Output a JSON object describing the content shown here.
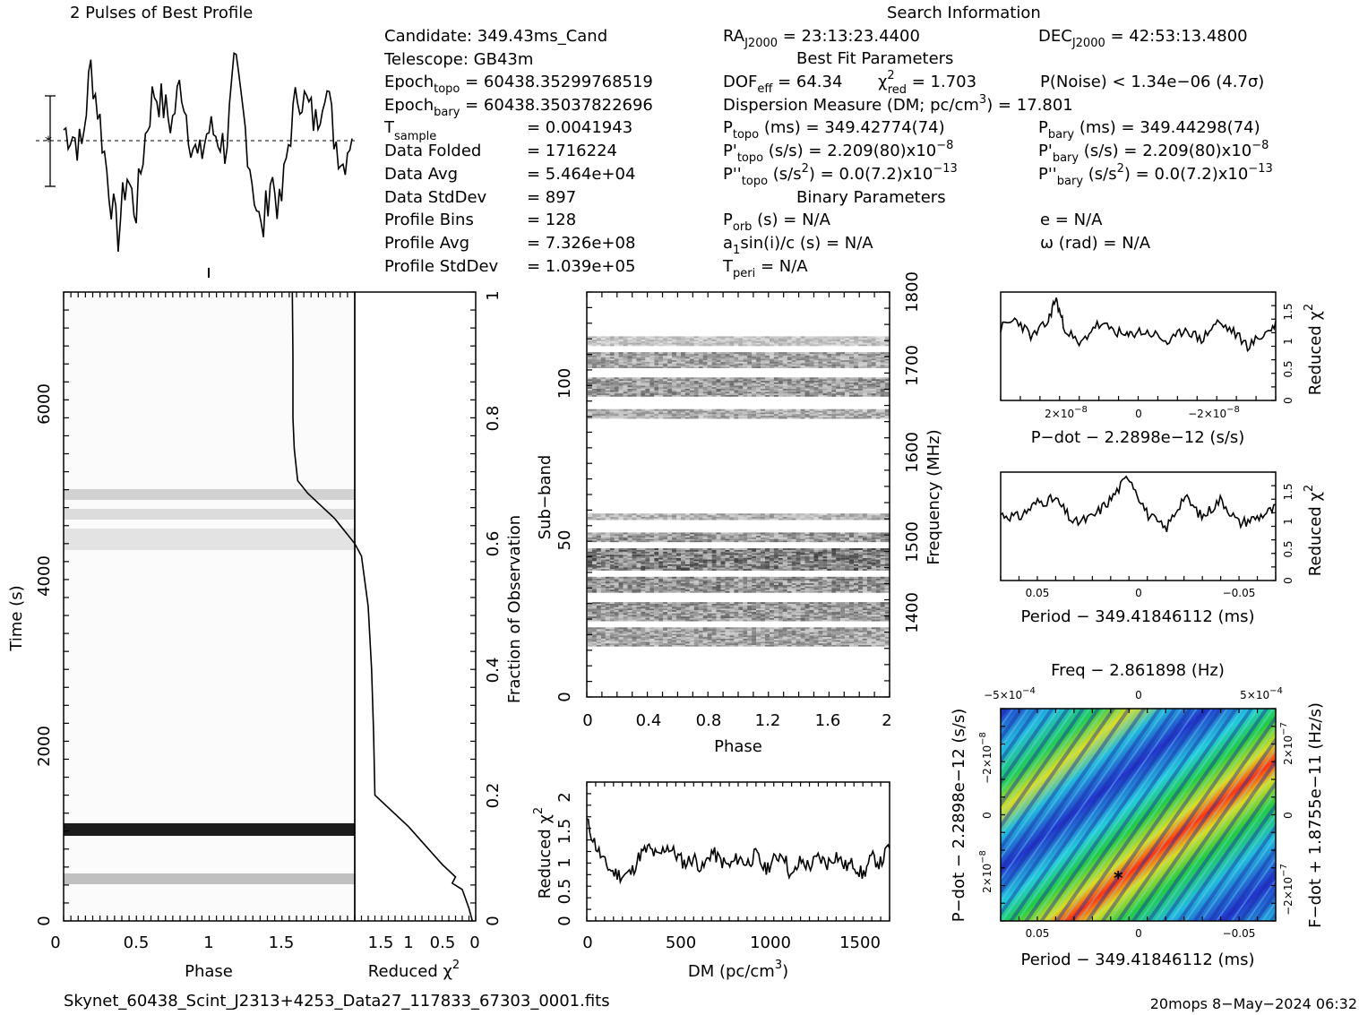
{
  "headers": {
    "profile_title": "2 Pulses of Best Profile",
    "search_title": "Search Information",
    "best_fit_title": "Best Fit Parameters",
    "binary_title": "Binary Parameters"
  },
  "candidate_info": {
    "candidate": "Candidate:  349.43ms_Cand",
    "telescope": "Telescope:  GB43m",
    "epoch_topo_label": "Epoch",
    "epoch_topo_sub": "topo",
    "epoch_topo_value": " = 60438.35299768519",
    "epoch_bary_label": "Epoch",
    "epoch_bary_sub": "bary",
    "epoch_bary_value": " = 60438.35037822696",
    "t_sample_label": "T",
    "t_sample_sub": "sample",
    "t_sample_value": "=  0.0041943",
    "data_folded_label": "Data Folded",
    "data_folded_value": "=  1716224",
    "data_avg_label": "Data Avg",
    "data_avg_value": "=  5.464e+04",
    "data_stddev_label": "Data StdDev",
    "data_stddev_value": "=  897",
    "profile_bins_label": "Profile Bins",
    "profile_bins_value": "=  128",
    "profile_avg_label": "Profile Avg",
    "profile_avg_value": "=  7.326e+08",
    "profile_stddev_label": "Profile StdDev",
    "profile_stddev_value": "=  1.039e+05"
  },
  "search_info": {
    "ra_label": "RA",
    "ra_sub": "J2000",
    "ra_value": " = 23:13:23.4400",
    "dec_label": "DEC",
    "dec_sub": "J2000",
    "dec_value": " = 42:53:13.4800",
    "dof_label": "DOF",
    "dof_sub": "eff",
    "dof_value": " = 64.34",
    "chi_label": "χ",
    "chi_sup": "2",
    "chi_sub": "red",
    "chi_value": " = 1.703",
    "pnoise": "P(Noise) < 1.34e−06   (4.7σ)",
    "dm_line_a": "Dispersion Measure (DM; pc/cm",
    "dm_line_sup": "3",
    "dm_line_b": ") = 17.801",
    "ptopo_label": "P",
    "ptopo_sub": "topo",
    "ptopo_value": " (ms) =  349.42774(74)",
    "pbary_label": "P",
    "pbary_sub": "bary",
    "pbary_value": " (ms) =  349.44298(74)",
    "pdtopo_label": "P'",
    "pdtopo_sub": "topo",
    "pdtopo_value": " (s/s) =  2.209(80)x10",
    "pdtopo_exp": "−8",
    "pdbary_label": "P'",
    "pdbary_sub": "bary",
    "pdbary_value": " (s/s) =  2.209(80)x10",
    "pdbary_exp": "−8",
    "pddtopo_label": "P''",
    "pddtopo_sub": "topo",
    "pddtopo_value": " (s/s",
    "pddtopo_sup": "2",
    "pddtopo_value2": ") = 0.0(7.2)x10",
    "pddtopo_exp": "−13",
    "pddbary_label": "P''",
    "pddbary_sub": "bary",
    "pddbary_value": " (s/s",
    "pddbary_sup": "2",
    "pddbary_value2": ") = 0.0(7.2)x10",
    "pddbary_exp": "−13",
    "porb_label": "P",
    "porb_sub": "orb",
    "porb_value": " (s) = N/A",
    "ecc": "e = N/A",
    "a1_label": "a",
    "a1_sub": "1",
    "a1_value": "sin(i)/c (s) = N/A",
    "omega": "ω (rad) = N/A",
    "tperi_label": "T",
    "tperi_sub": "peri",
    "tperi_value": " = N/A"
  },
  "footer": {
    "filename": "Skynet_60438_Scint_J2313+4253_Data27_117833_67303_0001.fits",
    "stamp": "20mops   8−May−2024 06:32"
  },
  "axes": {
    "time_phase": {
      "xlabel": "Phase",
      "ylabel": "Time (s)",
      "xticks": [
        "0",
        "0.5",
        "1",
        "1.5"
      ],
      "yticks": [
        "0",
        "2000",
        "4000",
        "6000"
      ]
    },
    "redchi_time": {
      "xlabel": "Reduced χ",
      "xlabel_sup": "2",
      "xticks": [
        "1.5",
        "1",
        "0.5",
        "0"
      ],
      "ylabel": "Fraction of Observation",
      "yticks": [
        "0",
        "0.2",
        "0.4",
        "0.6",
        "0.8",
        "1"
      ]
    },
    "subband": {
      "xlabel": "Phase",
      "ylabel": "Sub−band",
      "xticks": [
        "0",
        "0.4",
        "0.8",
        "1.2",
        "1.6",
        "2"
      ],
      "yticks": [
        "0",
        "50",
        "100"
      ],
      "y2label": "Frequency (MHz)",
      "y2ticks": [
        "1400",
        "1500",
        "1600",
        "1700",
        "1800"
      ]
    },
    "dm": {
      "xlabel": "DM (pc/cm",
      "xlabel_sup": "3",
      "xlabel_end": ")",
      "ylabel": "Reduced χ",
      "ylabel_sup": "2",
      "xticks": [
        "0",
        "500",
        "1000",
        "1500"
      ],
      "yticks": [
        "0",
        "0.5",
        "1",
        "1.5",
        "2"
      ]
    },
    "pdot": {
      "xlabel": "P−dot − 2.2898e−12 (s/s)",
      "ylabel": "Reduced χ",
      "ylabel_sup": "2",
      "xticks": [
        "2×10",
        "0",
        "−2×10"
      ],
      "xticks_exp": "−8",
      "yticks": [
        "0",
        "0.5",
        "1",
        "1.5"
      ]
    },
    "period": {
      "xlabel": "Period − 349.41846112 (ms)",
      "ylabel": "Reduced χ",
      "ylabel_sup": "2",
      "xticks": [
        "0.05",
        "0",
        "−0.05"
      ],
      "yticks": [
        "0",
        "0.5",
        "1",
        "1.5"
      ]
    },
    "ppdot": {
      "title": "Freq − 2.861898 (Hz)",
      "xlabel": "Period − 349.41846112 (ms)",
      "ylabel": "P−dot − 2.2898e−12 (s/s)",
      "y2label": "F−dot + 1.8755e−11 (Hz/s)",
      "xticks": [
        "0.05",
        "0",
        "−0.05"
      ],
      "topticks": [
        "−5×10",
        "0",
        "5×10"
      ],
      "topticks_exp": "−4",
      "yticks": [
        "2×10",
        "0",
        "−2×10"
      ],
      "yticks_exp": "−8",
      "y2ticks": [
        "−2×10",
        "0",
        "2×10"
      ],
      "y2ticks_exp": "−7"
    }
  },
  "chart_data": [
    {
      "type": "line",
      "name": "profile",
      "x": [
        0,
        0.0625,
        0.125,
        0.1875,
        0.25,
        0.3125,
        0.375,
        0.4375,
        0.5,
        0.5625,
        0.625,
        0.6875,
        0.75,
        0.8125,
        0.875,
        0.9375,
        1.0,
        1.0625,
        1.125,
        1.1875,
        1.25,
        1.3125,
        1.375,
        1.4375,
        1.5,
        1.5625,
        1.625,
        1.6875,
        1.75,
        1.8125,
        1.875,
        1.9375,
        2.0
      ],
      "values": [
        0.3,
        0.2,
        -0.1,
        1.6,
        0.5,
        -0.8,
        -1.9,
        -0.6,
        -1.4,
        0.1,
        1.1,
        0.8,
        0.4,
        1.3,
        0.2,
        -0.4,
        0.3,
        0.2,
        -0.1,
        1.6,
        0.5,
        -0.8,
        -1.9,
        -0.6,
        -1.4,
        0.1,
        1.1,
        0.8,
        0.4,
        1.3,
        0.2,
        -0.4,
        0.3
      ],
      "ylim": [
        -2.2,
        2.2
      ]
    },
    {
      "type": "line",
      "name": "redchi_vs_time",
      "x": [
        0.02,
        0.05,
        0.06,
        0.07,
        0.09,
        0.15,
        0.2,
        0.3,
        0.4,
        0.5,
        0.58,
        0.6,
        0.64,
        0.66,
        0.68,
        0.7,
        0.75,
        0.8,
        0.9,
        1.0
      ],
      "values": [
        0.1,
        0.2,
        0.35,
        0.3,
        0.5,
        1.0,
        1.5,
        1.52,
        1.55,
        1.6,
        1.7,
        1.8,
        2.1,
        2.3,
        2.5,
        2.65,
        2.7,
        2.72,
        2.72,
        2.73
      ],
      "xlim": [
        1.8,
        0
      ]
    },
    {
      "type": "line",
      "name": "redchi_vs_dm",
      "x": [
        0,
        50,
        100,
        150,
        200,
        250,
        300,
        350,
        400,
        450,
        500,
        550,
        600,
        650,
        700,
        750,
        800,
        850,
        900,
        950,
        1000,
        1050,
        1100,
        1150,
        1200,
        1250,
        1300,
        1350,
        1400,
        1450,
        1500,
        1550,
        1600,
        1650,
        1700
      ],
      "values": [
        1.65,
        1.25,
        0.95,
        0.8,
        0.75,
        0.8,
        1.1,
        1.2,
        1.05,
        1.25,
        1.1,
        0.95,
        1.05,
        0.85,
        1.15,
        1.0,
        0.9,
        1.05,
        0.95,
        1.1,
        0.85,
        1.0,
        1.15,
        0.7,
        1.0,
        0.9,
        1.05,
        0.95,
        1.1,
        0.9,
        0.95,
        0.75,
        1.05,
        0.95,
        1.25
      ],
      "xlim": [
        0,
        1700
      ],
      "ylim": [
        0,
        2.3
      ]
    },
    {
      "type": "line",
      "name": "redchi_vs_pdot",
      "x": [
        3.5,
        3.1,
        2.7,
        2.3,
        2.1,
        1.9,
        1.5,
        1.1,
        0.7,
        0.3,
        0,
        -0.4,
        -0.8,
        -1.2,
        -1.6,
        -2.0,
        -2.4,
        -2.8,
        -3.2,
        -3.5
      ],
      "values": [
        1.2,
        1.35,
        1.05,
        1.3,
        1.7,
        1.25,
        0.9,
        1.25,
        1.2,
        1.05,
        1.15,
        1.1,
        0.95,
        1.2,
        1.0,
        1.3,
        1.15,
        0.9,
        1.1,
        1.25
      ],
      "xlim": [
        3.5,
        -3.5
      ],
      "ylim": [
        0,
        1.8
      ]
    },
    {
      "type": "line",
      "name": "redchi_vs_period",
      "x": [
        0.075,
        0.065,
        0.055,
        0.045,
        0.035,
        0.025,
        0.015,
        0.005,
        -0.005,
        -0.015,
        -0.025,
        -0.035,
        -0.045,
        -0.055,
        -0.065,
        -0.075
      ],
      "values": [
        1.1,
        1.05,
        1.3,
        1.35,
        0.95,
        1.05,
        1.35,
        1.75,
        1.1,
        0.85,
        1.4,
        1.05,
        1.35,
        0.95,
        1.05,
        1.2
      ],
      "xlim": [
        0.075,
        -0.075
      ],
      "ylim": [
        0,
        1.8
      ]
    }
  ]
}
